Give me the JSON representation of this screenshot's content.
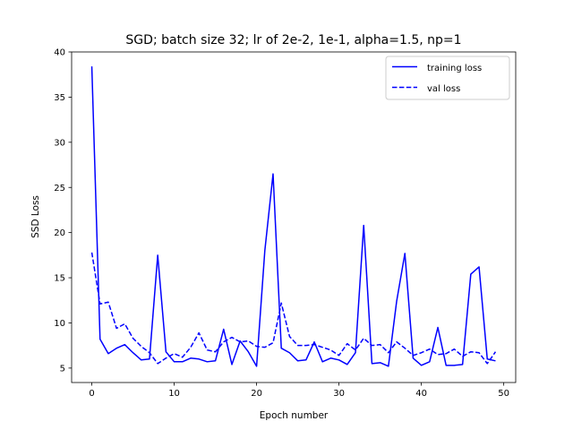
{
  "chart_data": {
    "type": "line",
    "title": "SGD; batch size 32; lr of 2e-2, 1e-1, alpha=1.5, np=1",
    "xlabel": "Epoch number",
    "ylabel": "SSD Loss",
    "xlim": [
      -2.45,
      51.45
    ],
    "ylim": [
      3.4,
      40
    ],
    "xticks": [
      0,
      10,
      20,
      30,
      40,
      50
    ],
    "yticks": [
      5,
      10,
      15,
      20,
      25,
      30,
      35,
      40
    ],
    "grid": false,
    "legend_position": "top-right",
    "color": "#0000ff",
    "x": [
      0,
      1,
      2,
      3,
      4,
      5,
      6,
      7,
      8,
      9,
      10,
      11,
      12,
      13,
      14,
      15,
      16,
      17,
      18,
      19,
      20,
      21,
      22,
      23,
      24,
      25,
      26,
      27,
      28,
      29,
      30,
      31,
      32,
      33,
      34,
      35,
      36,
      37,
      38,
      39,
      40,
      41,
      42,
      43,
      44,
      45,
      46,
      47,
      48,
      49
    ],
    "series": [
      {
        "name": "training loss",
        "style": "solid",
        "values": [
          38.4,
          8.2,
          6.6,
          7.2,
          7.6,
          6.7,
          5.9,
          6.0,
          17.5,
          6.8,
          5.7,
          5.7,
          6.1,
          6.0,
          5.7,
          5.8,
          9.3,
          5.4,
          8.0,
          6.8,
          5.2,
          18.0,
          26.5,
          7.2,
          6.7,
          5.8,
          5.9,
          7.9,
          5.7,
          6.1,
          5.9,
          5.4,
          6.7,
          20.8,
          5.5,
          5.6,
          5.2,
          12.4,
          17.7,
          6.1,
          5.3,
          5.7,
          9.5,
          5.3,
          5.3,
          5.4,
          15.4,
          16.2,
          6.0,
          5.8
        ]
      },
      {
        "name": "val loss",
        "style": "dashed",
        "values": [
          17.8,
          12.1,
          12.3,
          9.4,
          9.9,
          8.3,
          7.4,
          6.7,
          5.5,
          6.1,
          6.6,
          6.2,
          7.3,
          8.9,
          7.0,
          6.8,
          7.9,
          8.4,
          7.9,
          8.0,
          7.4,
          7.3,
          7.8,
          12.2,
          8.5,
          7.5,
          7.5,
          7.6,
          7.3,
          7.0,
          6.4,
          7.7,
          7.0,
          8.3,
          7.5,
          7.6,
          6.7,
          7.9,
          7.2,
          6.4,
          6.7,
          7.1,
          6.5,
          6.6,
          7.1,
          6.3,
          6.8,
          6.7,
          5.5,
          6.8
        ]
      }
    ]
  }
}
